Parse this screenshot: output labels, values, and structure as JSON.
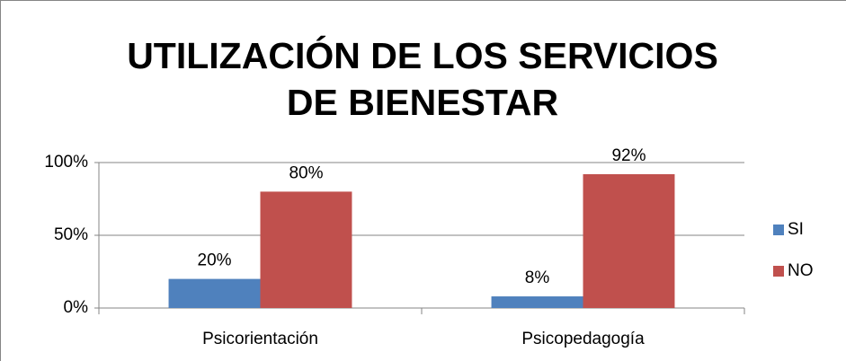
{
  "chart_data": {
    "type": "bar",
    "title": "UTILIZACIÓN DE LOS SERVICIOS DE BIENESTAR",
    "categories": [
      "Psicorientación",
      "Psicopedagogía"
    ],
    "series": [
      {
        "name": "SI",
        "color": "#4f81bd",
        "values": [
          20,
          8
        ],
        "value_labels": [
          "20%",
          "8%"
        ]
      },
      {
        "name": "NO",
        "color": "#c0504d",
        "values": [
          80,
          92
        ],
        "value_labels": [
          "80%",
          "92%"
        ]
      }
    ],
    "ylim": [
      0,
      100
    ],
    "yticks": [
      {
        "value": 0,
        "label": "0%"
      },
      {
        "value": 50,
        "label": "50%"
      },
      {
        "value": 100,
        "label": "100%"
      }
    ],
    "grid": true,
    "legend": "right"
  }
}
